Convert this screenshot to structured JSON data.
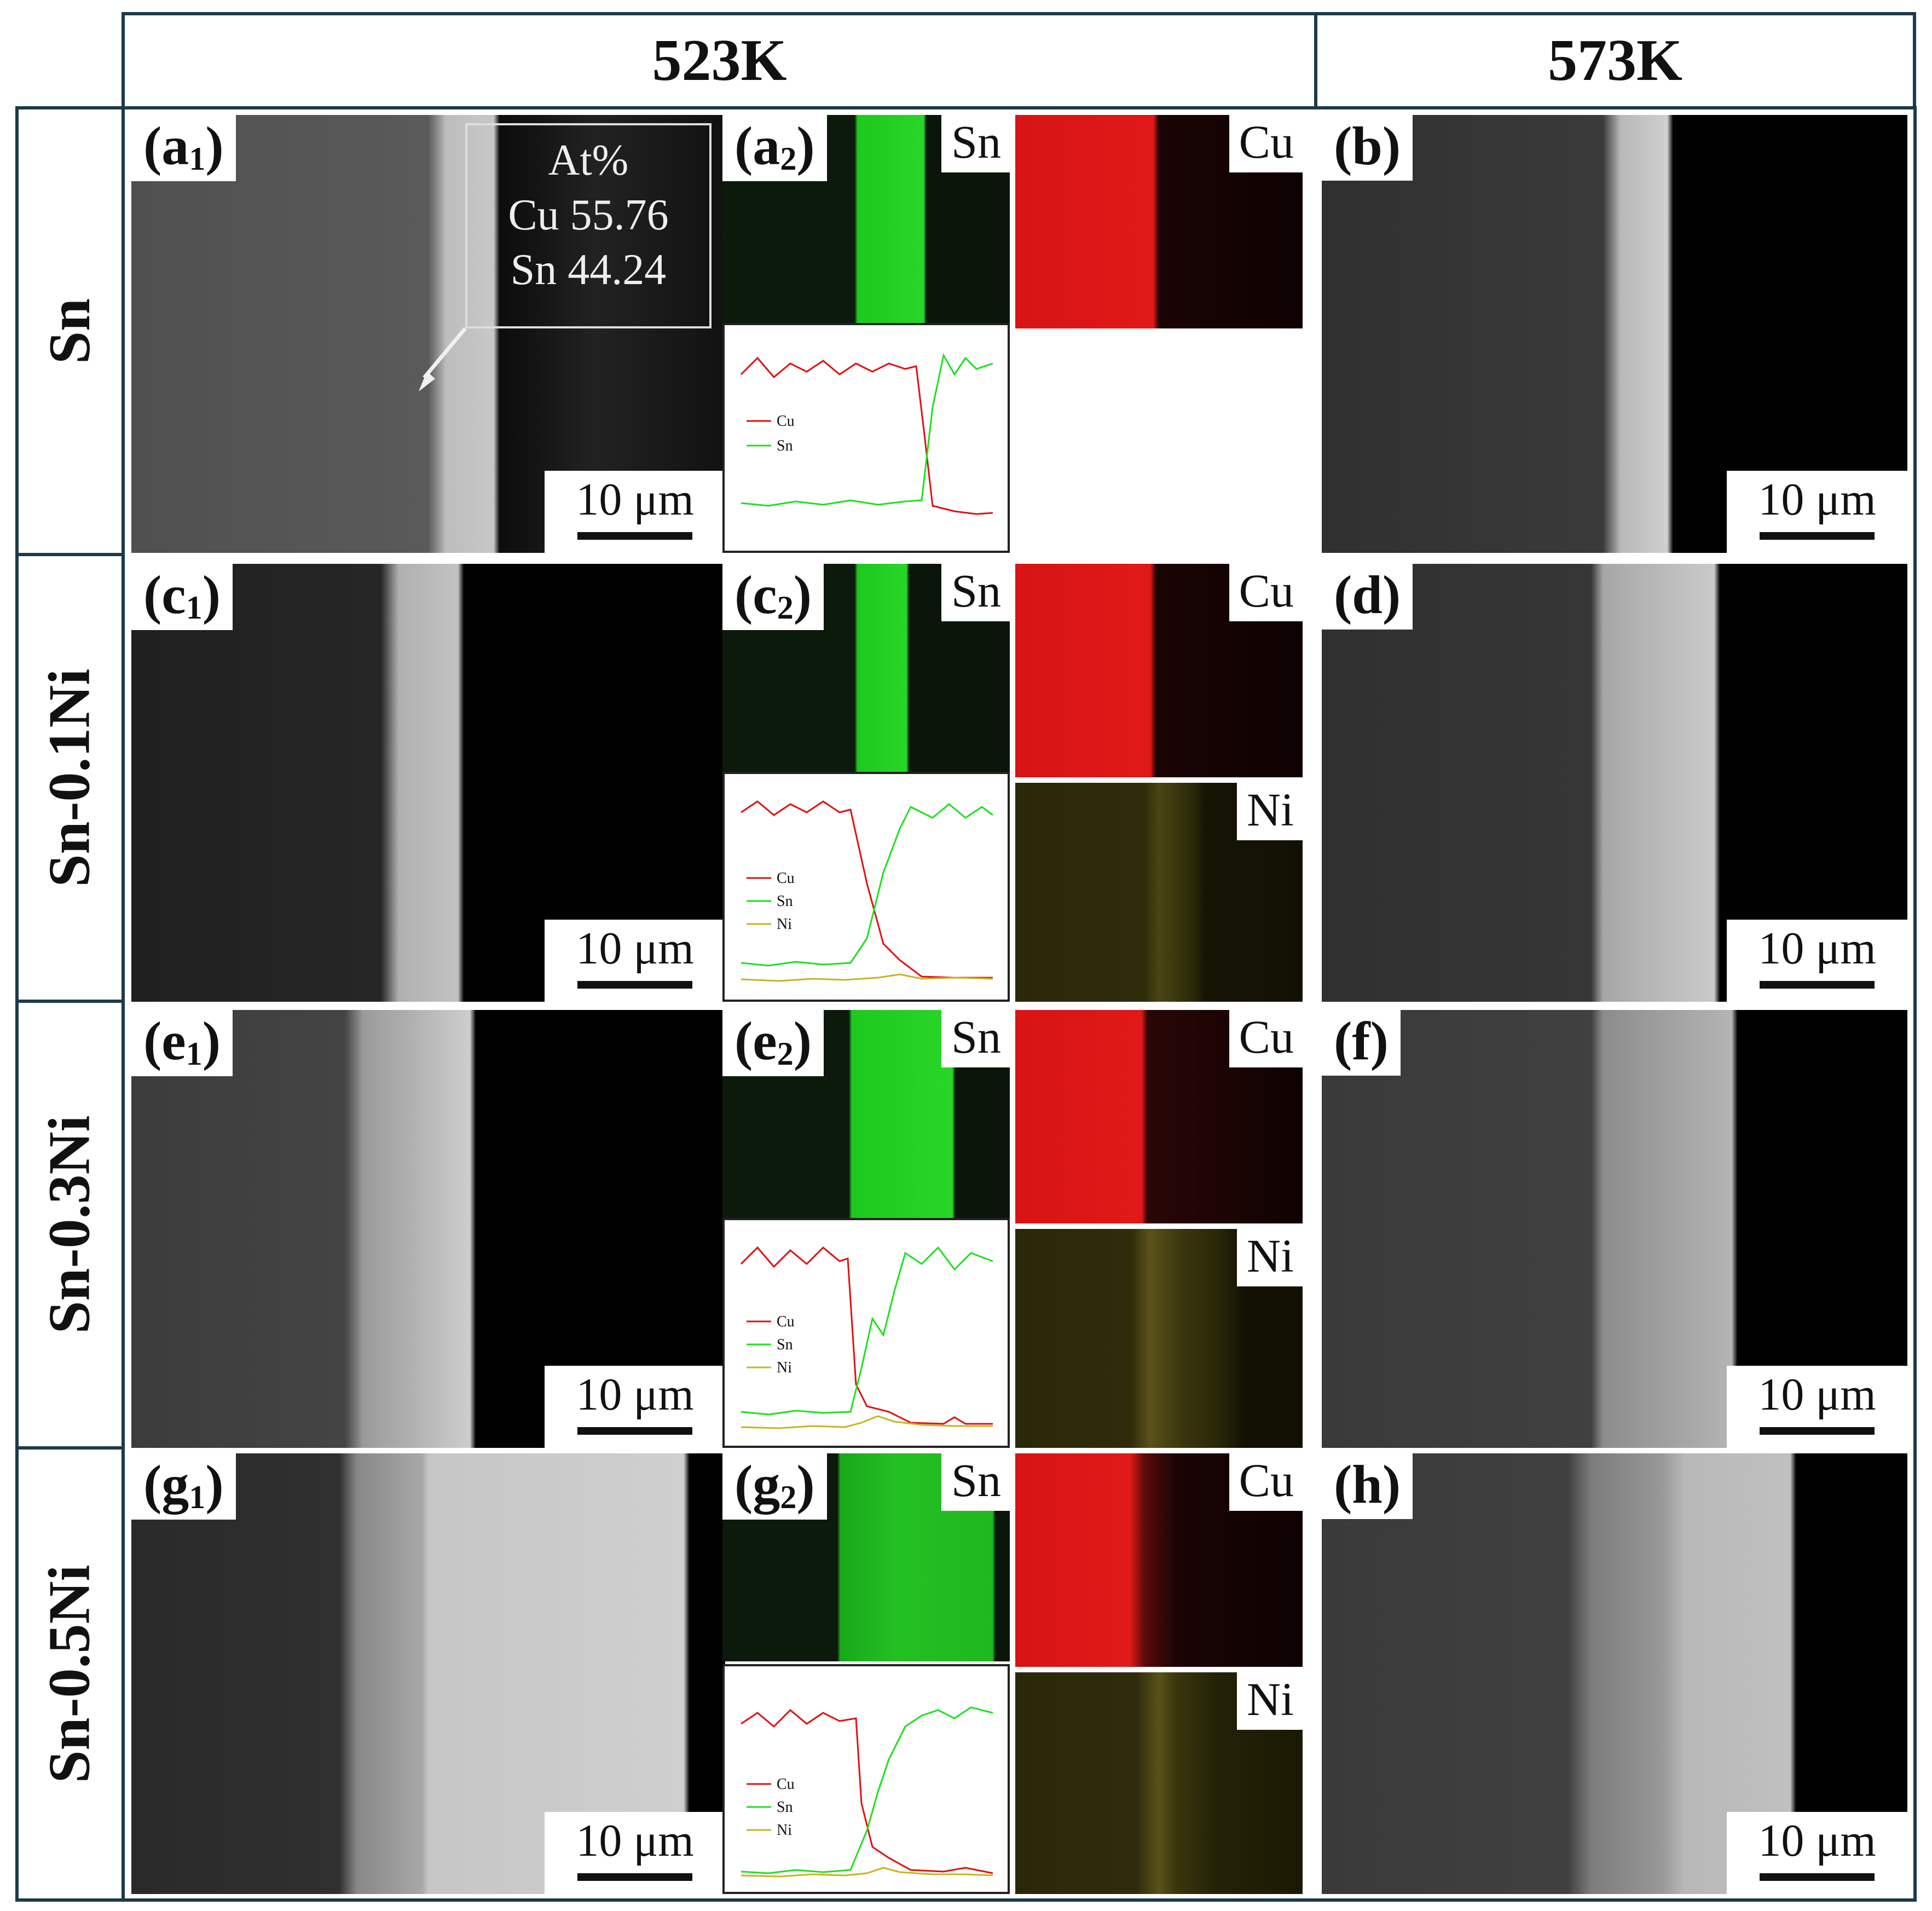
{
  "columns": {
    "left": "523K",
    "right": "573K"
  },
  "rows": [
    {
      "label": "Sn"
    },
    {
      "label": "Sn-0.1Ni"
    },
    {
      "label": "Sn-0.3Ni"
    },
    {
      "label": "Sn-0.5Ni"
    }
  ],
  "panels": {
    "a1": {
      "letter": "(a",
      "sub": "1",
      "close": ")"
    },
    "a2": {
      "letter": "(a",
      "sub": "2",
      "close": ")"
    },
    "b": {
      "letter": "(b)"
    },
    "c1": {
      "letter": "(c",
      "sub": "1",
      "close": ")"
    },
    "c2": {
      "letter": "(c",
      "sub": "2",
      "close": ")"
    },
    "d": {
      "letter": "(d)"
    },
    "e1": {
      "letter": "(e",
      "sub": "1",
      "close": ")"
    },
    "e2": {
      "letter": "(e",
      "sub": "2",
      "close": ")"
    },
    "f": {
      "letter": "(f)"
    },
    "g1": {
      "letter": "(g",
      "sub": "1",
      "close": ")"
    },
    "g2": {
      "letter": "(g",
      "sub": "2",
      "close": ")"
    },
    "h": {
      "letter": "(h)"
    }
  },
  "scale_bar": "10 μm",
  "composition": {
    "title": "At%",
    "line1": "Cu 55.76",
    "line2": "Sn 44.24"
  },
  "map_labels": {
    "sn": "Sn",
    "cu": "Cu",
    "ni": "Ni"
  },
  "line_legend": {
    "cu": "Cu",
    "sn": "Sn",
    "ni": "Ni"
  },
  "colors": {
    "frame": "#1c3a4b",
    "cu": "#e01010",
    "sn": "#1ee01e",
    "ni": "#c8b420"
  }
}
